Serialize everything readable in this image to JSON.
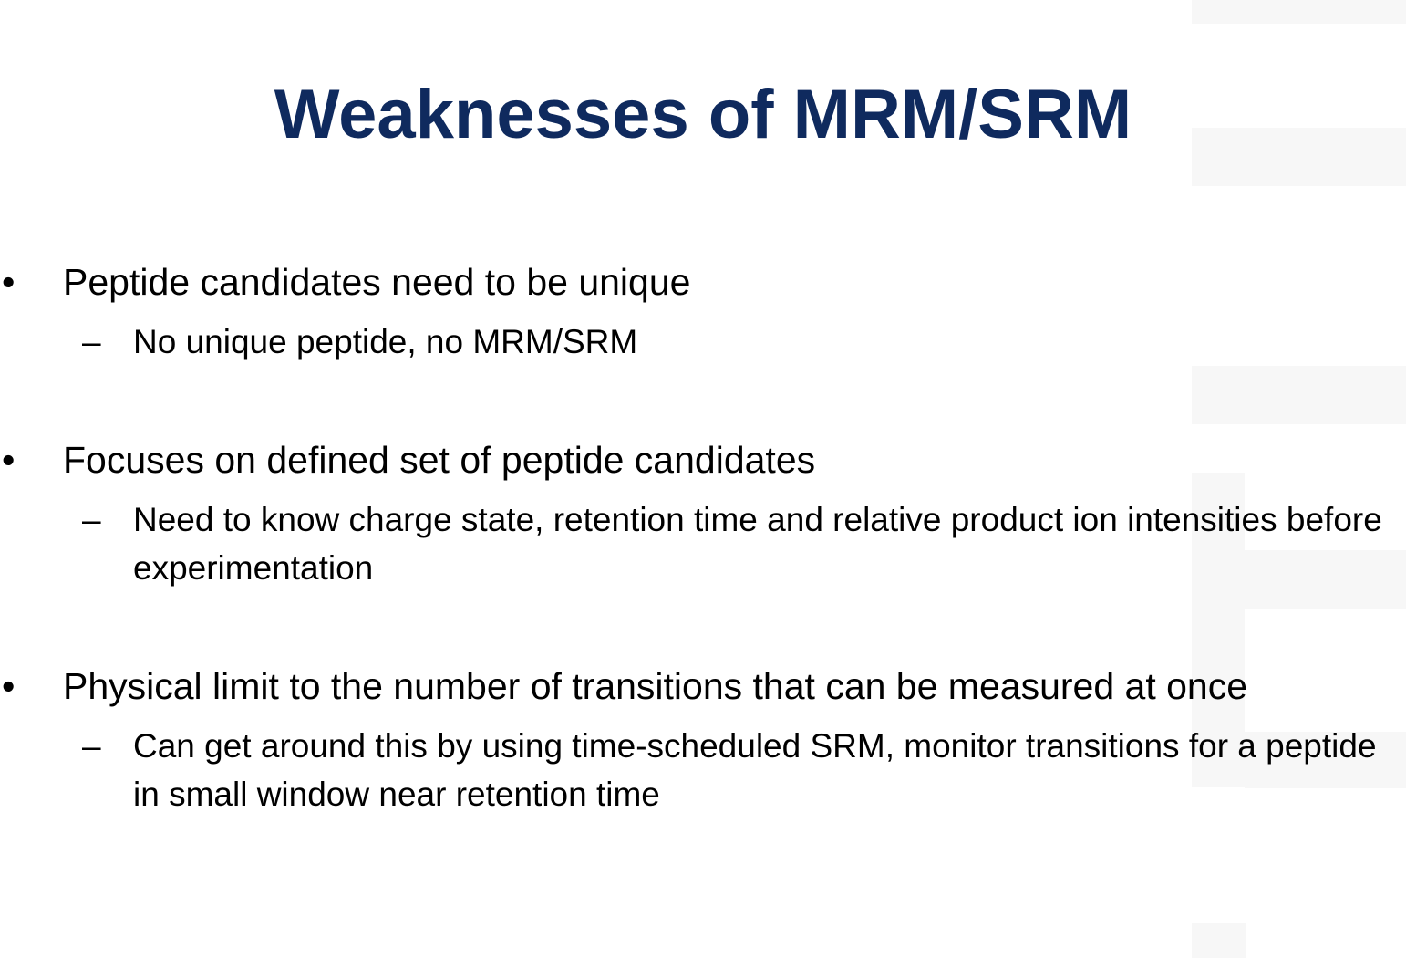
{
  "slide": {
    "title": "Weaknesses of MRM/SRM",
    "title_color": "#0f2a5e",
    "bullets": [
      {
        "marker": "•",
        "text": "Peptide candidates need to be unique",
        "sub": {
          "marker": "–",
          "text": "No unique peptide, no MRM/SRM"
        }
      },
      {
        "marker": "•",
        "text": "Focuses on defined set of peptide candidates",
        "sub": {
          "marker": "–",
          "text": "Need to know charge state, retention time and relative product ion intensities before experimentation"
        }
      },
      {
        "marker": "•",
        "text": "Physical limit to the number of transitions that can be measured at once",
        "sub": {
          "marker": "–",
          "text": "Can get around this by using time-scheduled SRM, monitor transitions for a peptide in small window near retention time"
        }
      }
    ]
  }
}
